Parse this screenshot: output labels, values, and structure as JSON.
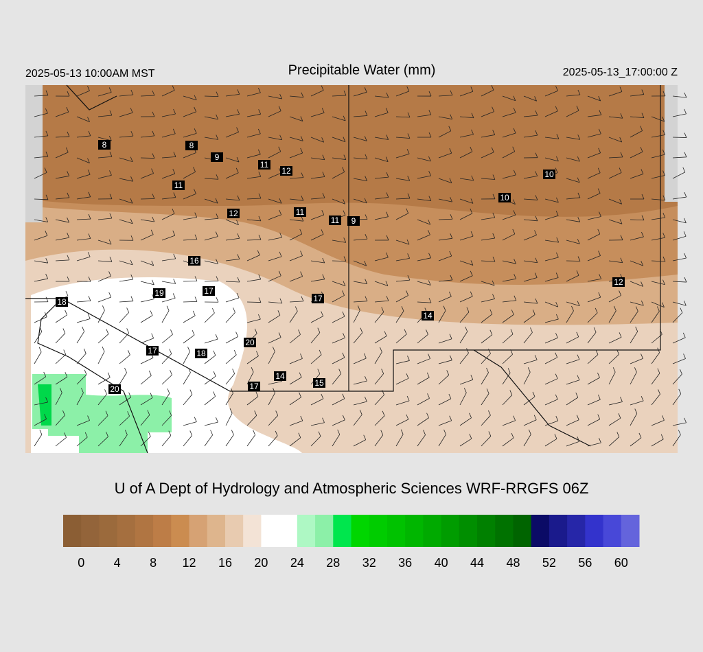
{
  "header": {
    "left_timestamp": "2025-05-13 10:00AM MST",
    "title": "Precipitable Water (mm)",
    "right_timestamp": "2025-05-13_17:00:00 Z"
  },
  "map": {
    "station_labels": [
      "8",
      "8",
      "9",
      "11",
      "12",
      "11",
      "12",
      "11",
      "11",
      "9",
      "10",
      "10",
      "16",
      "19",
      "17",
      "18",
      "17",
      "14",
      "12",
      "20",
      "17",
      "18",
      "14",
      "17",
      "15",
      "20"
    ]
  },
  "footer": {
    "credit": "U of A Dept of Hydrology and Atmospheric Sciences WRF-RRGFS 06Z"
  },
  "colorbar": {
    "range": [
      -2,
      62
    ],
    "colors": [
      "#8b5e34",
      "#93643a",
      "#9b6a3c",
      "#a56f3f",
      "#b07542",
      "#bd7d47",
      "#cb8c50",
      "#d6a274",
      "#deb58d",
      "#e8cbb0",
      "#f3e3d6",
      "#ffffff",
      "#ffffff",
      "#aef8c4",
      "#8cf0a8",
      "#00e64d",
      "#00d600",
      "#00cc00",
      "#00c200",
      "#00b600",
      "#00aa00",
      "#009c00",
      "#008e00",
      "#008000",
      "#007200",
      "#006400",
      "#0b0b66",
      "#1a1a8c",
      "#2626a8",
      "#3333cc",
      "#4848d8",
      "#6464dc"
    ],
    "ticks": [
      0,
      4,
      8,
      12,
      16,
      20,
      24,
      28,
      32,
      36,
      40,
      44,
      48,
      52,
      56,
      60
    ]
  }
}
